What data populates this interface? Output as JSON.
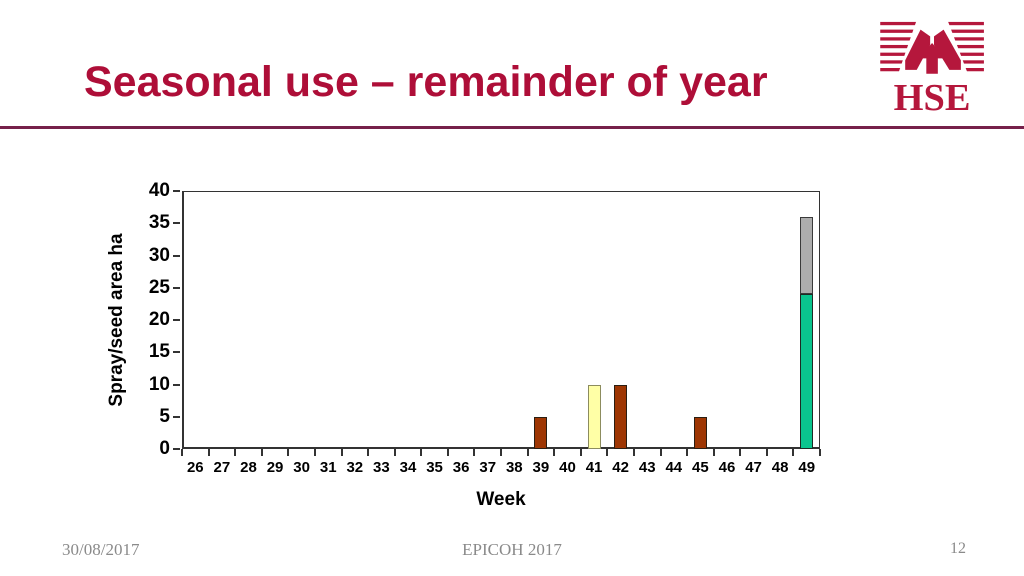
{
  "slide": {
    "title": "Seasonal use – remainder of year",
    "logo": {
      "text": "HSE"
    },
    "footer": {
      "date": "30/08/2017",
      "event": "EPICOH 2017",
      "page_number": "12"
    }
  },
  "chart_data": {
    "type": "bar",
    "stacked": true,
    "title": "",
    "xlabel": "Week",
    "ylabel": "Spray/seed area ha",
    "ylim": [
      0,
      40
    ],
    "yticks": [
      0,
      5,
      10,
      15,
      20,
      25,
      30,
      35,
      40
    ],
    "categories": [
      26,
      27,
      28,
      29,
      30,
      31,
      32,
      33,
      34,
      35,
      36,
      37,
      38,
      39,
      40,
      41,
      42,
      43,
      44,
      45,
      46,
      47,
      48,
      49
    ],
    "grid": false,
    "legend_position": "none",
    "bars": [
      {
        "week": 39,
        "segments": [
          {
            "value": 5,
            "color": "#9E3603",
            "border": "#2A1E12"
          }
        ]
      },
      {
        "week": 41,
        "segments": [
          {
            "value": 10,
            "color": "#FFFFA6",
            "border": "#8C8C5E"
          }
        ]
      },
      {
        "week": 42,
        "segments": [
          {
            "value": 10,
            "color": "#9E3603",
            "border": "#2A1E12"
          }
        ]
      },
      {
        "week": 45,
        "segments": [
          {
            "value": 5,
            "color": "#9E3603",
            "border": "#2A1E12"
          }
        ]
      },
      {
        "week": 49,
        "segments": [
          {
            "value": 24,
            "color": "#0AC58E",
            "border": "#1E2A24"
          },
          {
            "value": 12,
            "color": "#ADADAD",
            "border": "#3A3A3A"
          }
        ]
      }
    ]
  },
  "theme": {
    "title_color": "#AE0E38",
    "rule_color": "#76204A",
    "logo_color": "#B5173C",
    "axis_color": "#333333",
    "footer_color": "#8A8A8A"
  }
}
